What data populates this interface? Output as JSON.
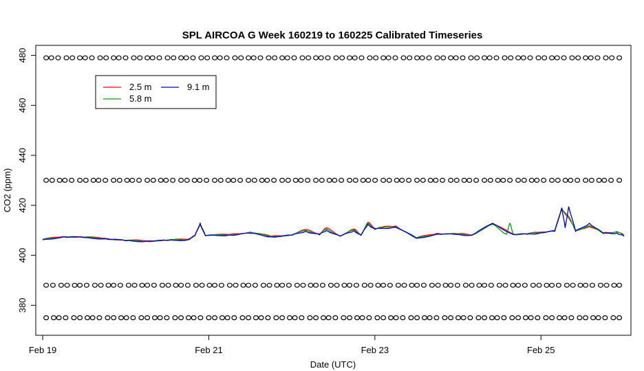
{
  "chart_data": {
    "type": "line",
    "title": "SPL AIRCOA G  Week 160219 to 160225  Calibrated Timeseries",
    "xlabel": "Date (UTC)",
    "ylabel": "CO2 (ppm)",
    "xlim": [
      "2016-02-18 22:00",
      "2016-02-26 02:00"
    ],
    "ylim": [
      368,
      484
    ],
    "xticks": [
      {
        "date": "2016-02-19",
        "label": "Feb 19"
      },
      {
        "date": "2016-02-21",
        "label": "Feb 21"
      },
      {
        "date": "2016-02-23",
        "label": "Feb 23"
      },
      {
        "date": "2016-02-25",
        "label": "Feb 25"
      }
    ],
    "yticks": [
      380,
      400,
      420,
      440,
      460,
      480
    ],
    "legend": {
      "position": "top-left",
      "entries": [
        {
          "label": "2.5 m",
          "color": "#ff0000"
        },
        {
          "label": "5.8 m",
          "color": "#00a000"
        },
        {
          "label": "9.1 m",
          "color": "#0000cc"
        }
      ]
    },
    "series": [
      {
        "name": "2.5 m",
        "color": "#ff0000",
        "points": [
          [
            "2016-02-19 00:00",
            406.4
          ],
          [
            "2016-02-19 06:00",
            407.5
          ],
          [
            "2016-02-19 12:00",
            407.3
          ],
          [
            "2016-02-19 18:00",
            406.8
          ],
          [
            "2016-02-20 00:00",
            406.0
          ],
          [
            "2016-02-20 06:00",
            405.8
          ],
          [
            "2016-02-20 12:00",
            406.1
          ],
          [
            "2016-02-20 18:00",
            406.4
          ],
          [
            "2016-02-20 20:00",
            408.0
          ],
          [
            "2016-02-20 21:30",
            412.5
          ],
          [
            "2016-02-20 23:00",
            408.0
          ],
          [
            "2016-02-21 06:00",
            408.3
          ],
          [
            "2016-02-21 12:00",
            409.3
          ],
          [
            "2016-02-21 18:00",
            407.6
          ],
          [
            "2016-02-22 00:00",
            408.2
          ],
          [
            "2016-02-22 04:00",
            410.3
          ],
          [
            "2016-02-22 08:00",
            408.6
          ],
          [
            "2016-02-22 10:00",
            411.0
          ],
          [
            "2016-02-22 14:00",
            407.8
          ],
          [
            "2016-02-22 18:00",
            410.5
          ],
          [
            "2016-02-22 20:00",
            408.2
          ],
          [
            "2016-02-23 00:00",
            410.8
          ],
          [
            "2016-02-22 22:00",
            413.2
          ],
          [
            "2016-02-23 02:00",
            411.2
          ],
          [
            "2016-02-23 06:00",
            411.8
          ],
          [
            "2016-02-23 12:00",
            407.0
          ],
          [
            "2016-02-23 18:00",
            408.8
          ],
          [
            "2016-02-24 00:00",
            408.6
          ],
          [
            "2016-02-24 04:00",
            408.2
          ],
          [
            "2016-02-24 10:00",
            412.6
          ],
          [
            "2016-02-24 16:00",
            408.5
          ],
          [
            "2016-02-24 20:00",
            408.6
          ],
          [
            "2016-02-25 00:00",
            409.3
          ],
          [
            "2016-02-25 04:00",
            410.0
          ],
          [
            "2016-02-25 06:00",
            418.5
          ],
          [
            "2016-02-25 08:00",
            415.0
          ],
          [
            "2016-02-25 10:00",
            410.0
          ],
          [
            "2016-02-25 14:00",
            411.5
          ],
          [
            "2016-02-25 18:00",
            409.0
          ],
          [
            "2016-02-25 22:00",
            409.5
          ],
          [
            "2016-02-26 00:00",
            408.0
          ]
        ]
      },
      {
        "name": "5.8 m",
        "color": "#00a000",
        "points": [
          [
            "2016-02-19 00:00",
            406.3
          ],
          [
            "2016-02-19 06:00",
            407.4
          ],
          [
            "2016-02-19 12:00",
            407.2
          ],
          [
            "2016-02-19 18:00",
            406.7
          ],
          [
            "2016-02-20 00:00",
            405.9
          ],
          [
            "2016-02-20 06:00",
            405.7
          ],
          [
            "2016-02-20 12:00",
            406.0
          ],
          [
            "2016-02-20 18:00",
            406.3
          ],
          [
            "2016-02-20 20:00",
            407.9
          ],
          [
            "2016-02-20 21:30",
            412.4
          ],
          [
            "2016-02-20 23:00",
            407.9
          ],
          [
            "2016-02-21 06:00",
            408.2
          ],
          [
            "2016-02-21 12:00",
            409.1
          ],
          [
            "2016-02-21 18:00",
            407.5
          ],
          [
            "2016-02-22 00:00",
            408.1
          ],
          [
            "2016-02-22 04:00",
            410.0
          ],
          [
            "2016-02-22 08:00",
            408.4
          ],
          [
            "2016-02-22 10:00",
            410.5
          ],
          [
            "2016-02-22 14:00",
            407.7
          ],
          [
            "2016-02-22 18:00",
            410.2
          ],
          [
            "2016-02-22 20:00",
            408.1
          ],
          [
            "2016-02-23 00:00",
            410.6
          ],
          [
            "2016-02-22 22:00",
            412.8
          ],
          [
            "2016-02-23 02:00",
            411.0
          ],
          [
            "2016-02-23 06:00",
            411.5
          ],
          [
            "2016-02-23 12:00",
            406.9
          ],
          [
            "2016-02-23 18:00",
            408.6
          ],
          [
            "2016-02-24 00:00",
            408.4
          ],
          [
            "2016-02-24 04:00",
            408.1
          ],
          [
            "2016-02-24 10:00",
            412.4
          ],
          [
            "2016-02-24 14:00",
            408.4
          ],
          [
            "2016-02-24 15:00",
            412.8
          ],
          [
            "2016-02-24 16:00",
            408.4
          ],
          [
            "2016-02-24 20:00",
            408.5
          ],
          [
            "2016-02-25 00:00",
            409.2
          ],
          [
            "2016-02-25 04:00",
            409.8
          ],
          [
            "2016-02-25 06:00",
            418.8
          ],
          [
            "2016-02-25 08:00",
            415.5
          ],
          [
            "2016-02-25 10:00",
            409.9
          ],
          [
            "2016-02-25 14:00",
            411.8
          ],
          [
            "2016-02-25 18:00",
            408.9
          ],
          [
            "2016-02-25 22:00",
            409.3
          ],
          [
            "2016-02-26 00:00",
            407.9
          ]
        ]
      },
      {
        "name": "9.1 m",
        "color": "#0000cc",
        "points": [
          [
            "2016-02-19 00:00",
            406.2
          ],
          [
            "2016-02-19 06:00",
            407.4
          ],
          [
            "2016-02-19 12:00",
            407.1
          ],
          [
            "2016-02-19 18:00",
            406.6
          ],
          [
            "2016-02-20 00:00",
            405.8
          ],
          [
            "2016-02-20 06:00",
            405.6
          ],
          [
            "2016-02-20 12:00",
            405.9
          ],
          [
            "2016-02-20 18:00",
            406.2
          ],
          [
            "2016-02-20 20:00",
            407.8
          ],
          [
            "2016-02-20 21:30",
            412.8
          ],
          [
            "2016-02-20 23:00",
            407.8
          ],
          [
            "2016-02-21 06:00",
            408.1
          ],
          [
            "2016-02-21 12:00",
            408.8
          ],
          [
            "2016-02-21 18:00",
            407.4
          ],
          [
            "2016-02-22 00:00",
            408.0
          ],
          [
            "2016-02-22 04:00",
            409.6
          ],
          [
            "2016-02-22 08:00",
            408.2
          ],
          [
            "2016-02-22 10:00",
            410.0
          ],
          [
            "2016-02-22 14:00",
            407.6
          ],
          [
            "2016-02-22 18:00",
            409.8
          ],
          [
            "2016-02-22 20:00",
            408.0
          ],
          [
            "2016-02-23 00:00",
            410.4
          ],
          [
            "2016-02-22 22:00",
            412.4
          ],
          [
            "2016-02-23 02:00",
            410.8
          ],
          [
            "2016-02-23 06:00",
            411.2
          ],
          [
            "2016-02-23 12:00",
            406.8
          ],
          [
            "2016-02-23 18:00",
            408.4
          ],
          [
            "2016-02-24 00:00",
            408.3
          ],
          [
            "2016-02-24 04:00",
            408.0
          ],
          [
            "2016-02-24 10:00",
            412.8
          ],
          [
            "2016-02-24 16:00",
            408.3
          ],
          [
            "2016-02-24 20:00",
            408.4
          ],
          [
            "2016-02-25 00:00",
            409.0
          ],
          [
            "2016-02-25 04:00",
            409.6
          ],
          [
            "2016-02-25 06:00",
            419.0
          ],
          [
            "2016-02-25 07:00",
            411.0
          ],
          [
            "2016-02-25 08:00",
            419.5
          ],
          [
            "2016-02-25 10:00",
            409.6
          ],
          [
            "2016-02-25 14:00",
            412.8
          ],
          [
            "2016-02-25 18:00",
            408.7
          ],
          [
            "2016-02-25 22:00",
            408.9
          ],
          [
            "2016-02-26 00:00",
            407.6
          ]
        ]
      }
    ],
    "marker_rows": [
      {
        "level": 479,
        "marker": "o"
      },
      {
        "level": 430,
        "marker": "o"
      },
      {
        "level": 388,
        "marker": "o"
      },
      {
        "level": 375,
        "marker": "o"
      }
    ],
    "marker_range": [
      "2016-02-19 01:00",
      "2016-02-26 00:00"
    ]
  }
}
